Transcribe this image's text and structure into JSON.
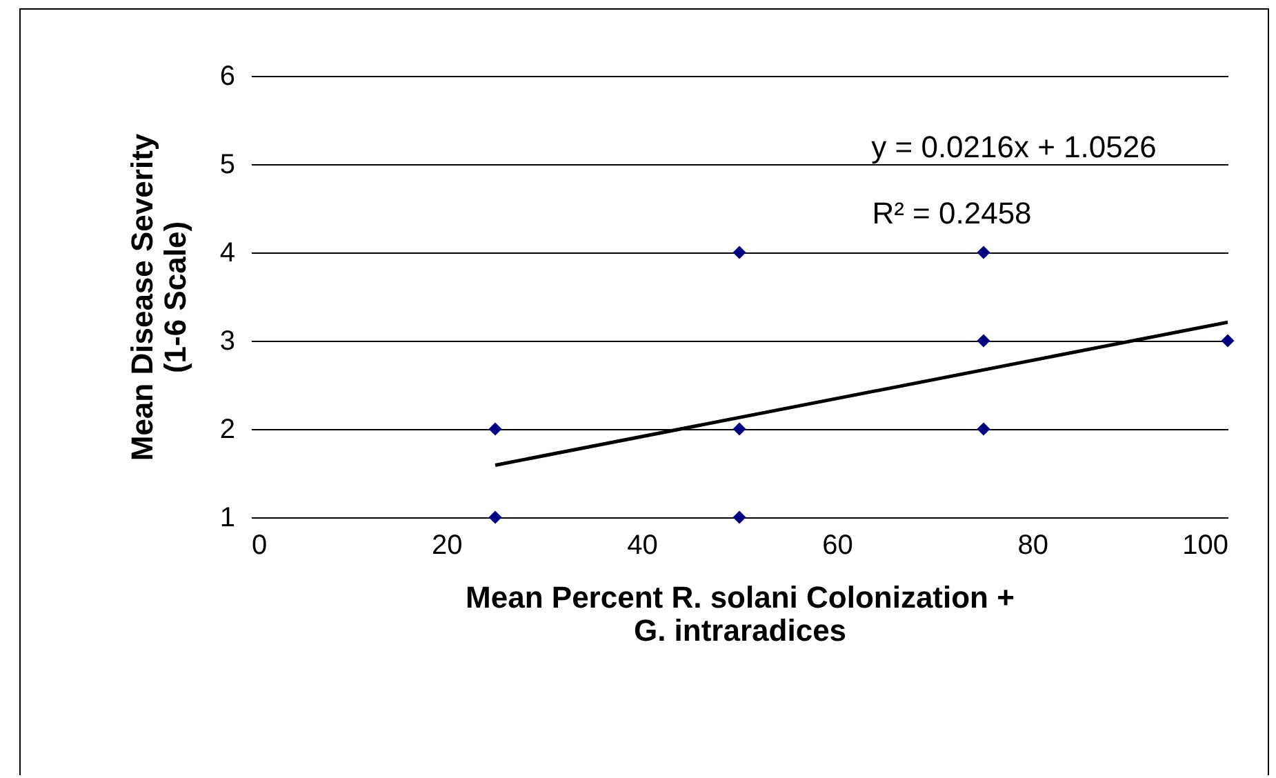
{
  "chart_data": {
    "type": "scatter",
    "xlabel": "Mean Percent R. solani Colonization +\nG. intraradices",
    "ylabel": "Mean Disease Severity\n(1-6 Scale)",
    "annotations": [
      "y = 0.0216x + 1.0526",
      "R² = 0.2458"
    ],
    "xlim": [
      0,
      100
    ],
    "xticks": [
      0,
      20,
      40,
      60,
      80,
      100
    ],
    "ylim": [
      1,
      6
    ],
    "yticks": [
      1,
      2,
      3,
      4,
      5,
      6
    ],
    "grid": "y",
    "series": [
      {
        "marker": "diamond",
        "color": "#000080",
        "x": [
          25,
          25,
          50,
          50,
          50,
          75,
          75,
          75,
          100
        ],
        "values": [
          2,
          1,
          4,
          2,
          1,
          4,
          3,
          2,
          3
        ]
      },
      {
        "type": "line",
        "color": "#000000",
        "x": [
          25,
          100
        ],
        "values": [
          1.59,
          3.21
        ]
      }
    ]
  }
}
